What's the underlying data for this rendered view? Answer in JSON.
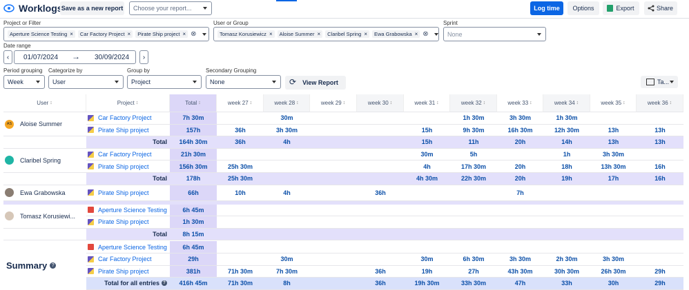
{
  "header": {
    "title": "Worklogs",
    "save_button": "Save as a new report",
    "report_select": "Choose your report...",
    "log_time": "Log time",
    "options": "Options",
    "export": "Export",
    "share": "Share"
  },
  "filters": {
    "project_label": "Project or Filter",
    "projects": [
      "Aperture Science Testing",
      "Car Factory Project",
      "Pirate Ship project"
    ],
    "user_label": "User or Group",
    "users": [
      "Tomasz Korusiewicz",
      "Aloise Summer",
      "Claribel Spring",
      "Ewa Grabowska"
    ],
    "sprint_label": "Sprint",
    "sprint_value": "None",
    "date_label": "Date range",
    "date_from": "01/07/2024",
    "date_to": "30/09/2024"
  },
  "grouping": {
    "period_label": "Period grouping",
    "period": "Week",
    "categorize_label": "Categorize by",
    "categorize": "User",
    "group_label": "Group by",
    "group": "Project",
    "secondary_label": "Secondary Grouping",
    "secondary": "None",
    "view_report": "View Report",
    "view_toggle": "Ta..."
  },
  "table": {
    "columns": [
      "User",
      "Project",
      "Total",
      "week 27",
      "week 28",
      "week 29",
      "week 30",
      "week 31",
      "week 32",
      "week 33",
      "week 34",
      "week 35",
      "week 36"
    ],
    "groups": [
      {
        "user": "Aloise Summer",
        "avatar": "AS",
        "rows": [
          {
            "project": "Car Factory Project",
            "total": "7h 30m",
            "weeks": [
              null,
              "30m",
              null,
              null,
              null,
              "1h 30m",
              "3h 30m",
              "1h 30m",
              null,
              null
            ]
          },
          {
            "project": "Pirate Ship project",
            "total": "157h",
            "weeks": [
              "36h",
              "3h 30m",
              null,
              null,
              "15h",
              "9h 30m",
              "16h 30m",
              "12h 30m",
              "13h",
              "13h"
            ]
          }
        ],
        "total_row": {
          "label": "Total",
          "total": "164h 30m",
          "weeks": [
            "36h",
            "4h",
            null,
            null,
            "15h",
            "11h",
            "20h",
            "14h",
            "13h",
            "13h"
          ]
        }
      },
      {
        "user": "Claribel Spring",
        "rows": [
          {
            "project": "Car Factory Project",
            "total": "21h 30m",
            "weeks": [
              null,
              null,
              null,
              null,
              "30m",
              "5h",
              null,
              "1h",
              "3h 30m",
              null
            ]
          },
          {
            "project": "Pirate Ship project",
            "total": "156h 30m",
            "weeks": [
              "25h 30m",
              null,
              null,
              null,
              "4h",
              "17h 30m",
              "20h",
              "18h",
              "13h 30m",
              "16h"
            ]
          }
        ],
        "total_row": {
          "label": "Total",
          "total": "178h",
          "weeks": [
            "25h 30m",
            null,
            null,
            null,
            "4h 30m",
            "22h 30m",
            "20h",
            "19h",
            "17h",
            "16h"
          ]
        }
      },
      {
        "user": "Ewa Grabowska",
        "rows": [
          {
            "project": "Pirate Ship project",
            "total": "66h",
            "weeks": [
              "10h",
              "4h",
              null,
              "36h",
              null,
              null,
              "7h",
              null,
              null,
              null
            ]
          }
        ]
      },
      {
        "user": "Tomasz Korusiewi...",
        "rows": [
          {
            "project": "Aperture Science Testing",
            "total": "6h 45m",
            "weeks": [
              null,
              null,
              null,
              null,
              null,
              null,
              null,
              null,
              null,
              null
            ]
          },
          {
            "project": "Pirate Ship project",
            "total": "1h 30m",
            "weeks": [
              null,
              null,
              null,
              null,
              null,
              null,
              null,
              null,
              null,
              null
            ]
          }
        ],
        "total_row": {
          "label": "Total",
          "total": "8h 15m",
          "weeks": [
            null,
            null,
            null,
            null,
            null,
            null,
            null,
            null,
            null,
            null
          ]
        }
      }
    ],
    "summary": {
      "title": "Summary",
      "rows": [
        {
          "project": "Aperture Science Testing",
          "total": "6h 45m",
          "weeks": [
            null,
            null,
            null,
            null,
            null,
            null,
            null,
            null,
            null,
            null
          ]
        },
        {
          "project": "Car Factory Project",
          "total": "29h",
          "weeks": [
            null,
            "30m",
            null,
            null,
            "30m",
            "6h 30m",
            "3h 30m",
            "2h 30m",
            "3h 30m",
            null
          ]
        },
        {
          "project": "Pirate Ship project",
          "total": "381h",
          "weeks": [
            "71h 30m",
            "7h 30m",
            null,
            "36h",
            "19h",
            "27h",
            "43h 30m",
            "30h 30m",
            "26h 30m",
            "29h"
          ]
        }
      ],
      "total_row": {
        "label": "Total for all entries",
        "total": "416h 45m",
        "weeks": [
          "71h 30m",
          "8h",
          null,
          "36h",
          "19h 30m",
          "33h 30m",
          "47h",
          "33h",
          "30h",
          "29h"
        ]
      }
    }
  }
}
